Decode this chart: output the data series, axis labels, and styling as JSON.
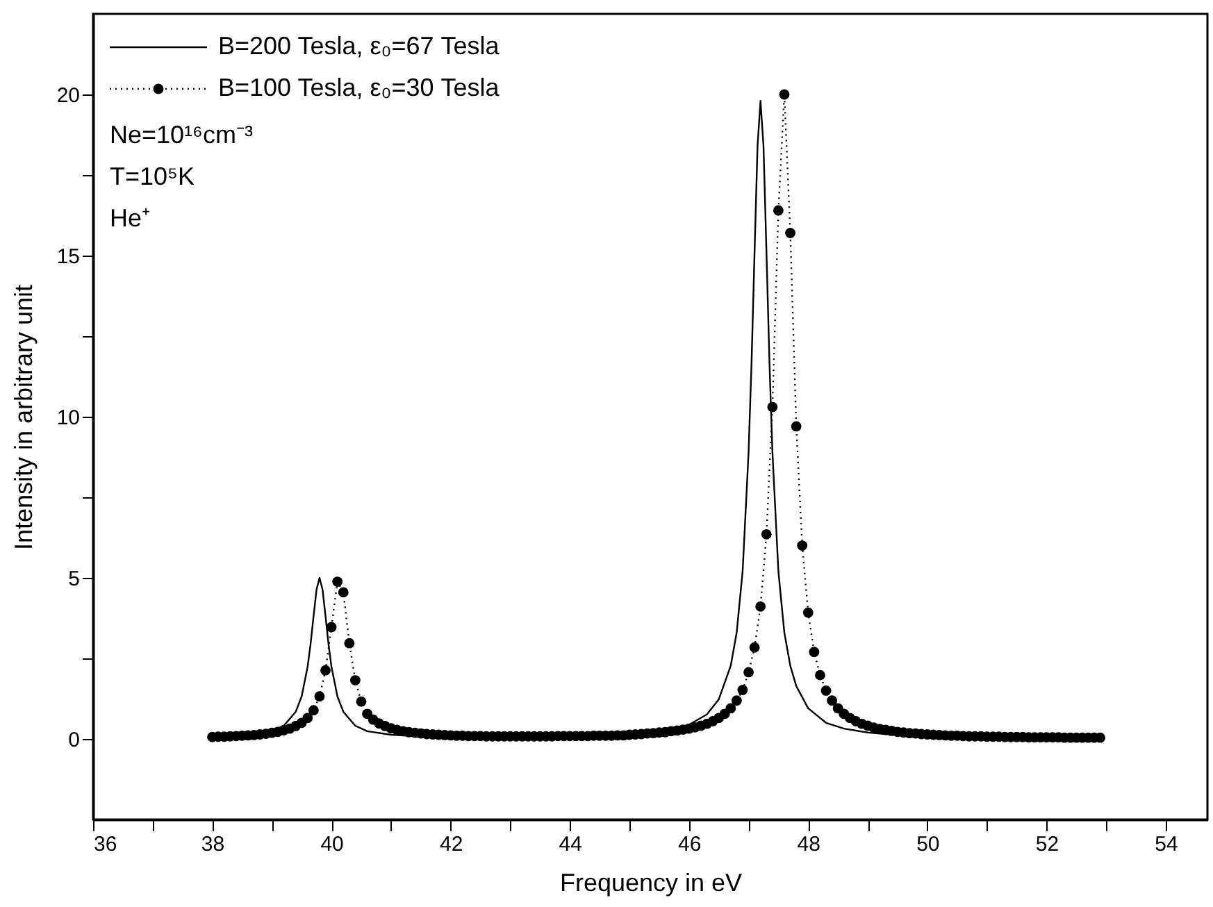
{
  "chart_data": {
    "type": "line",
    "xlabel": "Frequency in eV",
    "ylabel": "Intensity in arbitrary unit",
    "xlim": [
      36,
      54.7
    ],
    "ylim": [
      -2.5,
      22.5
    ],
    "xticks": [
      36,
      {
        "value": 37,
        "label": null
      },
      38,
      {
        "value": 39,
        "label": null
      },
      40,
      {
        "value": 41,
        "label": null
      },
      42,
      {
        "value": 43,
        "label": null
      },
      44,
      {
        "value": 45,
        "label": null
      },
      46,
      {
        "value": 47,
        "label": null
      },
      48,
      {
        "value": 49,
        "label": null
      },
      50,
      {
        "value": 51,
        "label": null
      },
      52,
      {
        "value": 53,
        "label": null
      },
      54
    ],
    "yticks": [
      0,
      {
        "value": 2.5,
        "label": null
      },
      5,
      {
        "value": 7.5,
        "label": null
      },
      10,
      {
        "value": 12.5,
        "label": null
      },
      15,
      {
        "value": 17.5,
        "label": null
      },
      20
    ],
    "grid": false,
    "legend": "top left",
    "annotations": [
      "Ne=10¹⁶cm⁻³",
      "T=10⁵K",
      "He⁺"
    ],
    "series": [
      {
        "name": "B=200 Tesla, ε₀=67 Tesla",
        "color": "#000000",
        "line_style": "solid",
        "marker": "none",
        "x": [
          38,
          38.5,
          39,
          39.2,
          39.4,
          39.5,
          39.6,
          39.65,
          39.7,
          39.75,
          39.8,
          39.85,
          39.9,
          39.95,
          40.0,
          40.1,
          40.2,
          40.4,
          40.6,
          41,
          41.5,
          42,
          43,
          44,
          45,
          45.5,
          46,
          46.3,
          46.5,
          46.7,
          46.8,
          46.9,
          47.0,
          47.05,
          47.1,
          47.15,
          47.2,
          47.25,
          47.3,
          47.35,
          47.4,
          47.5,
          47.6,
          47.7,
          47.8,
          48.0,
          48.3,
          48.6,
          49,
          49.5,
          50,
          51,
          52,
          52.9
        ],
        "values": [
          0.05,
          0.1,
          0.24,
          0.41,
          0.84,
          1.32,
          2.24,
          2.95,
          3.82,
          4.64,
          5.0,
          4.64,
          3.82,
          2.95,
          2.24,
          1.32,
          0.84,
          0.41,
          0.24,
          0.13,
          0.08,
          0.07,
          0.06,
          0.07,
          0.13,
          0.22,
          0.44,
          0.76,
          1.23,
          2.27,
          3.3,
          5.2,
          8.9,
          11.7,
          15.1,
          18.4,
          19.8,
          18.4,
          15.1,
          11.7,
          8.9,
          5.2,
          3.3,
          2.27,
          1.64,
          0.95,
          0.5,
          0.32,
          0.2,
          0.12,
          0.08,
          0.04,
          0.03,
          0.02
        ]
      },
      {
        "name": "B=100 Tesla, ε₀=30 Tesla",
        "color": "#000000",
        "line_style": "dotted",
        "marker": "circle",
        "x": [
          38.0,
          38.1,
          38.2,
          38.3,
          38.4,
          38.5,
          38.6,
          38.7,
          38.8,
          38.9,
          39.0,
          39.1,
          39.2,
          39.3,
          39.4,
          39.5,
          39.6,
          39.7,
          39.8,
          39.9,
          40.0,
          40.1,
          40.2,
          40.3,
          40.4,
          40.5,
          40.6,
          40.7,
          40.8,
          40.9,
          41.0,
          41.1,
          41.2,
          41.3,
          41.4,
          41.5,
          41.6,
          41.7,
          41.8,
          41.9,
          42.0,
          42.1,
          42.2,
          42.3,
          42.4,
          42.5,
          42.6,
          42.7,
          42.8,
          42.9,
          43.0,
          43.1,
          43.2,
          43.3,
          43.4,
          43.5,
          43.6,
          43.7,
          43.8,
          43.9,
          44.0,
          44.1,
          44.2,
          44.3,
          44.4,
          44.5,
          44.6,
          44.7,
          44.8,
          44.9,
          45.0,
          45.1,
          45.2,
          45.3,
          45.4,
          45.5,
          45.6,
          45.7,
          45.8,
          45.9,
          46.0,
          46.1,
          46.2,
          46.3,
          46.4,
          46.5,
          46.6,
          46.7,
          46.8,
          46.9,
          47.0,
          47.1,
          47.2,
          47.3,
          47.4,
          47.5,
          47.6,
          47.7,
          47.8,
          47.9,
          48.0,
          48.1,
          48.2,
          48.3,
          48.4,
          48.5,
          48.6,
          48.7,
          48.8,
          48.9,
          49.0,
          49.1,
          49.2,
          49.3,
          49.4,
          49.5,
          49.6,
          49.7,
          49.8,
          49.9,
          50.0,
          50.1,
          50.2,
          50.3,
          50.4,
          50.5,
          50.6,
          50.7,
          50.8,
          50.9,
          51.0,
          51.1,
          51.2,
          51.3,
          51.4,
          51.5,
          51.6,
          51.7,
          51.8,
          51.9,
          52.0,
          52.1,
          52.2,
          52.3,
          52.4,
          52.5,
          52.6,
          52.7,
          52.8,
          52.9
        ],
        "values": [
          0.06,
          0.07,
          0.07,
          0.08,
          0.09,
          0.1,
          0.11,
          0.12,
          0.14,
          0.16,
          0.19,
          0.22,
          0.27,
          0.32,
          0.4,
          0.5,
          0.65,
          0.89,
          1.32,
          2.13,
          3.47,
          4.88,
          4.55,
          2.97,
          1.82,
          1.16,
          0.78,
          0.6,
          0.48,
          0.4,
          0.33,
          0.28,
          0.24,
          0.21,
          0.19,
          0.17,
          0.15,
          0.14,
          0.13,
          0.12,
          0.11,
          0.1,
          0.1,
          0.09,
          0.09,
          0.09,
          0.08,
          0.08,
          0.08,
          0.08,
          0.08,
          0.08,
          0.08,
          0.08,
          0.08,
          0.08,
          0.08,
          0.08,
          0.09,
          0.09,
          0.09,
          0.09,
          0.09,
          0.09,
          0.1,
          0.1,
          0.1,
          0.1,
          0.11,
          0.11,
          0.13,
          0.14,
          0.15,
          0.17,
          0.18,
          0.2,
          0.21,
          0.24,
          0.26,
          0.29,
          0.32,
          0.36,
          0.41,
          0.47,
          0.55,
          0.65,
          0.78,
          0.95,
          1.19,
          1.52,
          2.07,
          2.84,
          4.11,
          6.35,
          10.3,
          16.4,
          20.0,
          15.7,
          9.7,
          6.0,
          3.92,
          2.7,
          1.98,
          1.5,
          1.19,
          0.95,
          0.78,
          0.65,
          0.55,
          0.47,
          0.41,
          0.35,
          0.31,
          0.28,
          0.25,
          0.22,
          0.2,
          0.18,
          0.17,
          0.15,
          0.14,
          0.13,
          0.12,
          0.11,
          0.1,
          0.1,
          0.09,
          0.08,
          0.08,
          0.08,
          0.07,
          0.07,
          0.07,
          0.06,
          0.06,
          0.06,
          0.06,
          0.05,
          0.05,
          0.05,
          0.05,
          0.05,
          0.05,
          0.04,
          0.04,
          0.04,
          0.04,
          0.04,
          0.04,
          0.04
        ]
      }
    ]
  }
}
